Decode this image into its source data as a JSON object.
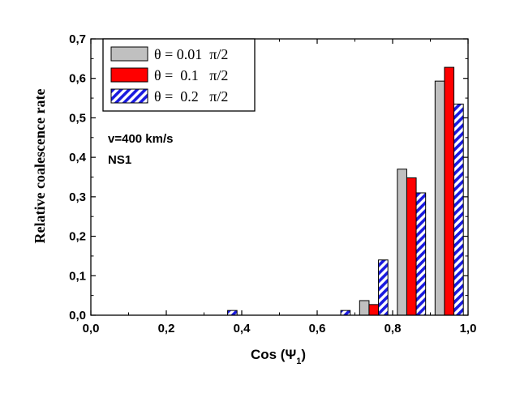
{
  "chart_data": {
    "type": "bar",
    "title": "",
    "xlabel": "Cos (Ψ",
    "xlabel_subscript": "1",
    "xlabel_close": ")",
    "ylabel": "Relative coalescence rate",
    "xlim": [
      0.0,
      1.0
    ],
    "ylim": [
      0.0,
      0.7
    ],
    "xticks": [
      "0,0",
      "0,2",
      "0,4",
      "0,6",
      "0,8",
      "1,0"
    ],
    "yticks": [
      "0,0",
      "0,1",
      "0,2",
      "0,3",
      "0,4",
      "0,5",
      "0,6",
      "0,7"
    ],
    "bin_width": 0.025,
    "series": [
      {
        "name": "θ = 0.01  π/2",
        "color": "#c0c0c0",
        "pattern": "solid",
        "x": [
          0.725,
          0.825,
          0.925
        ],
        "values": [
          0.037,
          0.37,
          0.593
        ]
      },
      {
        "name": "θ =  0.1   π/2",
        "color": "#ff0000",
        "pattern": "solid",
        "x": [
          0.75,
          0.85,
          0.95
        ],
        "values": [
          0.027,
          0.348,
          0.628
        ]
      },
      {
        "name": "θ =  0.2   π/2",
        "color": "#1a1adf",
        "pattern": "hatched",
        "x": [
          0.375,
          0.675,
          0.775,
          0.875,
          0.975
        ],
        "values": [
          0.012,
          0.012,
          0.14,
          0.31,
          0.535
        ]
      }
    ],
    "annotations": [
      "v=400 km/s",
      "NS1"
    ],
    "legend_position": "top-left",
    "grid": false
  }
}
